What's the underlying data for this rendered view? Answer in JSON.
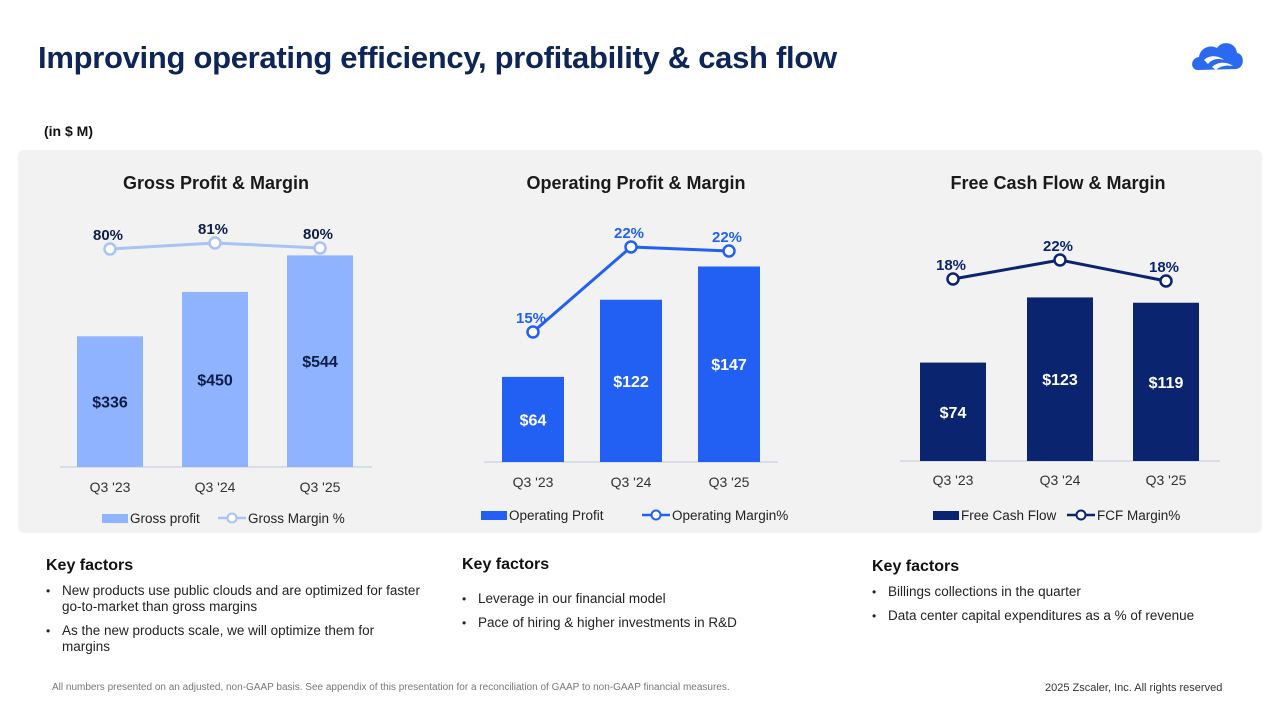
{
  "title": "Improving operating efficiency, profitability & cash flow",
  "units": "(in $ M)",
  "logo_icon": "zscaler-cloud-icon",
  "chart_data": [
    {
      "type": "bar",
      "title": "Gross Profit & Margin",
      "categories": [
        "Q3 '23",
        "Q3 '24",
        "Q3 '25"
      ],
      "series": [
        {
          "name": "Gross profit",
          "kind": "bar",
          "values": [
            336,
            450,
            544
          ],
          "labels": [
            "$336",
            "$450",
            "$544"
          ],
          "color": "#8fb3ff",
          "label_color": "#0d1d45"
        },
        {
          "name": "Gross Margin %",
          "kind": "line",
          "values": [
            80,
            81,
            80
          ],
          "labels": [
            "80%",
            "81%",
            "80%"
          ],
          "color": "#a9c3f5",
          "label_color": "#0d1d45"
        }
      ],
      "legend": [
        "Gross profit",
        "Gross Margin %"
      ],
      "legend_position": "bottom"
    },
    {
      "type": "bar",
      "title": "Operating Profit & Margin",
      "categories": [
        "Q3 '23",
        "Q3 '24",
        "Q3 '25"
      ],
      "series": [
        {
          "name": "Operating Profit",
          "kind": "bar",
          "values": [
            64,
            122,
            147
          ],
          "labels": [
            "$64",
            "$122",
            "$147"
          ],
          "color": "#2160f3",
          "label_color": "#ffffff"
        },
        {
          "name": "Operating Margin%",
          "kind": "line",
          "values": [
            15,
            22,
            22
          ],
          "labels": [
            "15%",
            "22%",
            "22%"
          ],
          "color": "#2160f3",
          "label_color": "#2160f3"
        }
      ],
      "legend": [
        "Operating Profit",
        "Operating Margin%"
      ],
      "legend_position": "bottom"
    },
    {
      "type": "bar",
      "title": "Free Cash Flow & Margin",
      "categories": [
        "Q3 '23",
        "Q3 '24",
        "Q3 '25"
      ],
      "series": [
        {
          "name": "Free Cash Flow",
          "kind": "bar",
          "values": [
            74,
            123,
            119
          ],
          "labels": [
            "$74",
            "$123",
            "$119"
          ],
          "color": "#0b2470",
          "label_color": "#ffffff"
        },
        {
          "name": "FCF Margin%",
          "kind": "line",
          "values": [
            18,
            22,
            18
          ],
          "labels": [
            "18%",
            "22%",
            "18%"
          ],
          "color": "#0b2470",
          "label_color": "#0b2470"
        }
      ],
      "legend": [
        "Free Cash Flow",
        "FCF Margin%"
      ],
      "legend_position": "bottom"
    }
  ],
  "key_factors": [
    {
      "title": "Key factors",
      "items": [
        "New products use public clouds and are optimized for faster go-to-market than gross margins",
        "As the new products scale, we will optimize them for margins"
      ]
    },
    {
      "title": "Key factors",
      "items": [
        "Leverage in our financial model",
        "Pace of hiring & higher investments in R&D"
      ]
    },
    {
      "title": "Key factors",
      "items": [
        "Billings collections in the quarter",
        "Data center capital expenditures as a % of revenue"
      ]
    }
  ],
  "footnote": "All numbers presented on an adjusted, non-GAAP basis. See appendix of this presentation for a reconciliation of GAAP to non-GAAP financial measures.",
  "copyright": "2025 Zscaler, Inc. All rights reserved"
}
